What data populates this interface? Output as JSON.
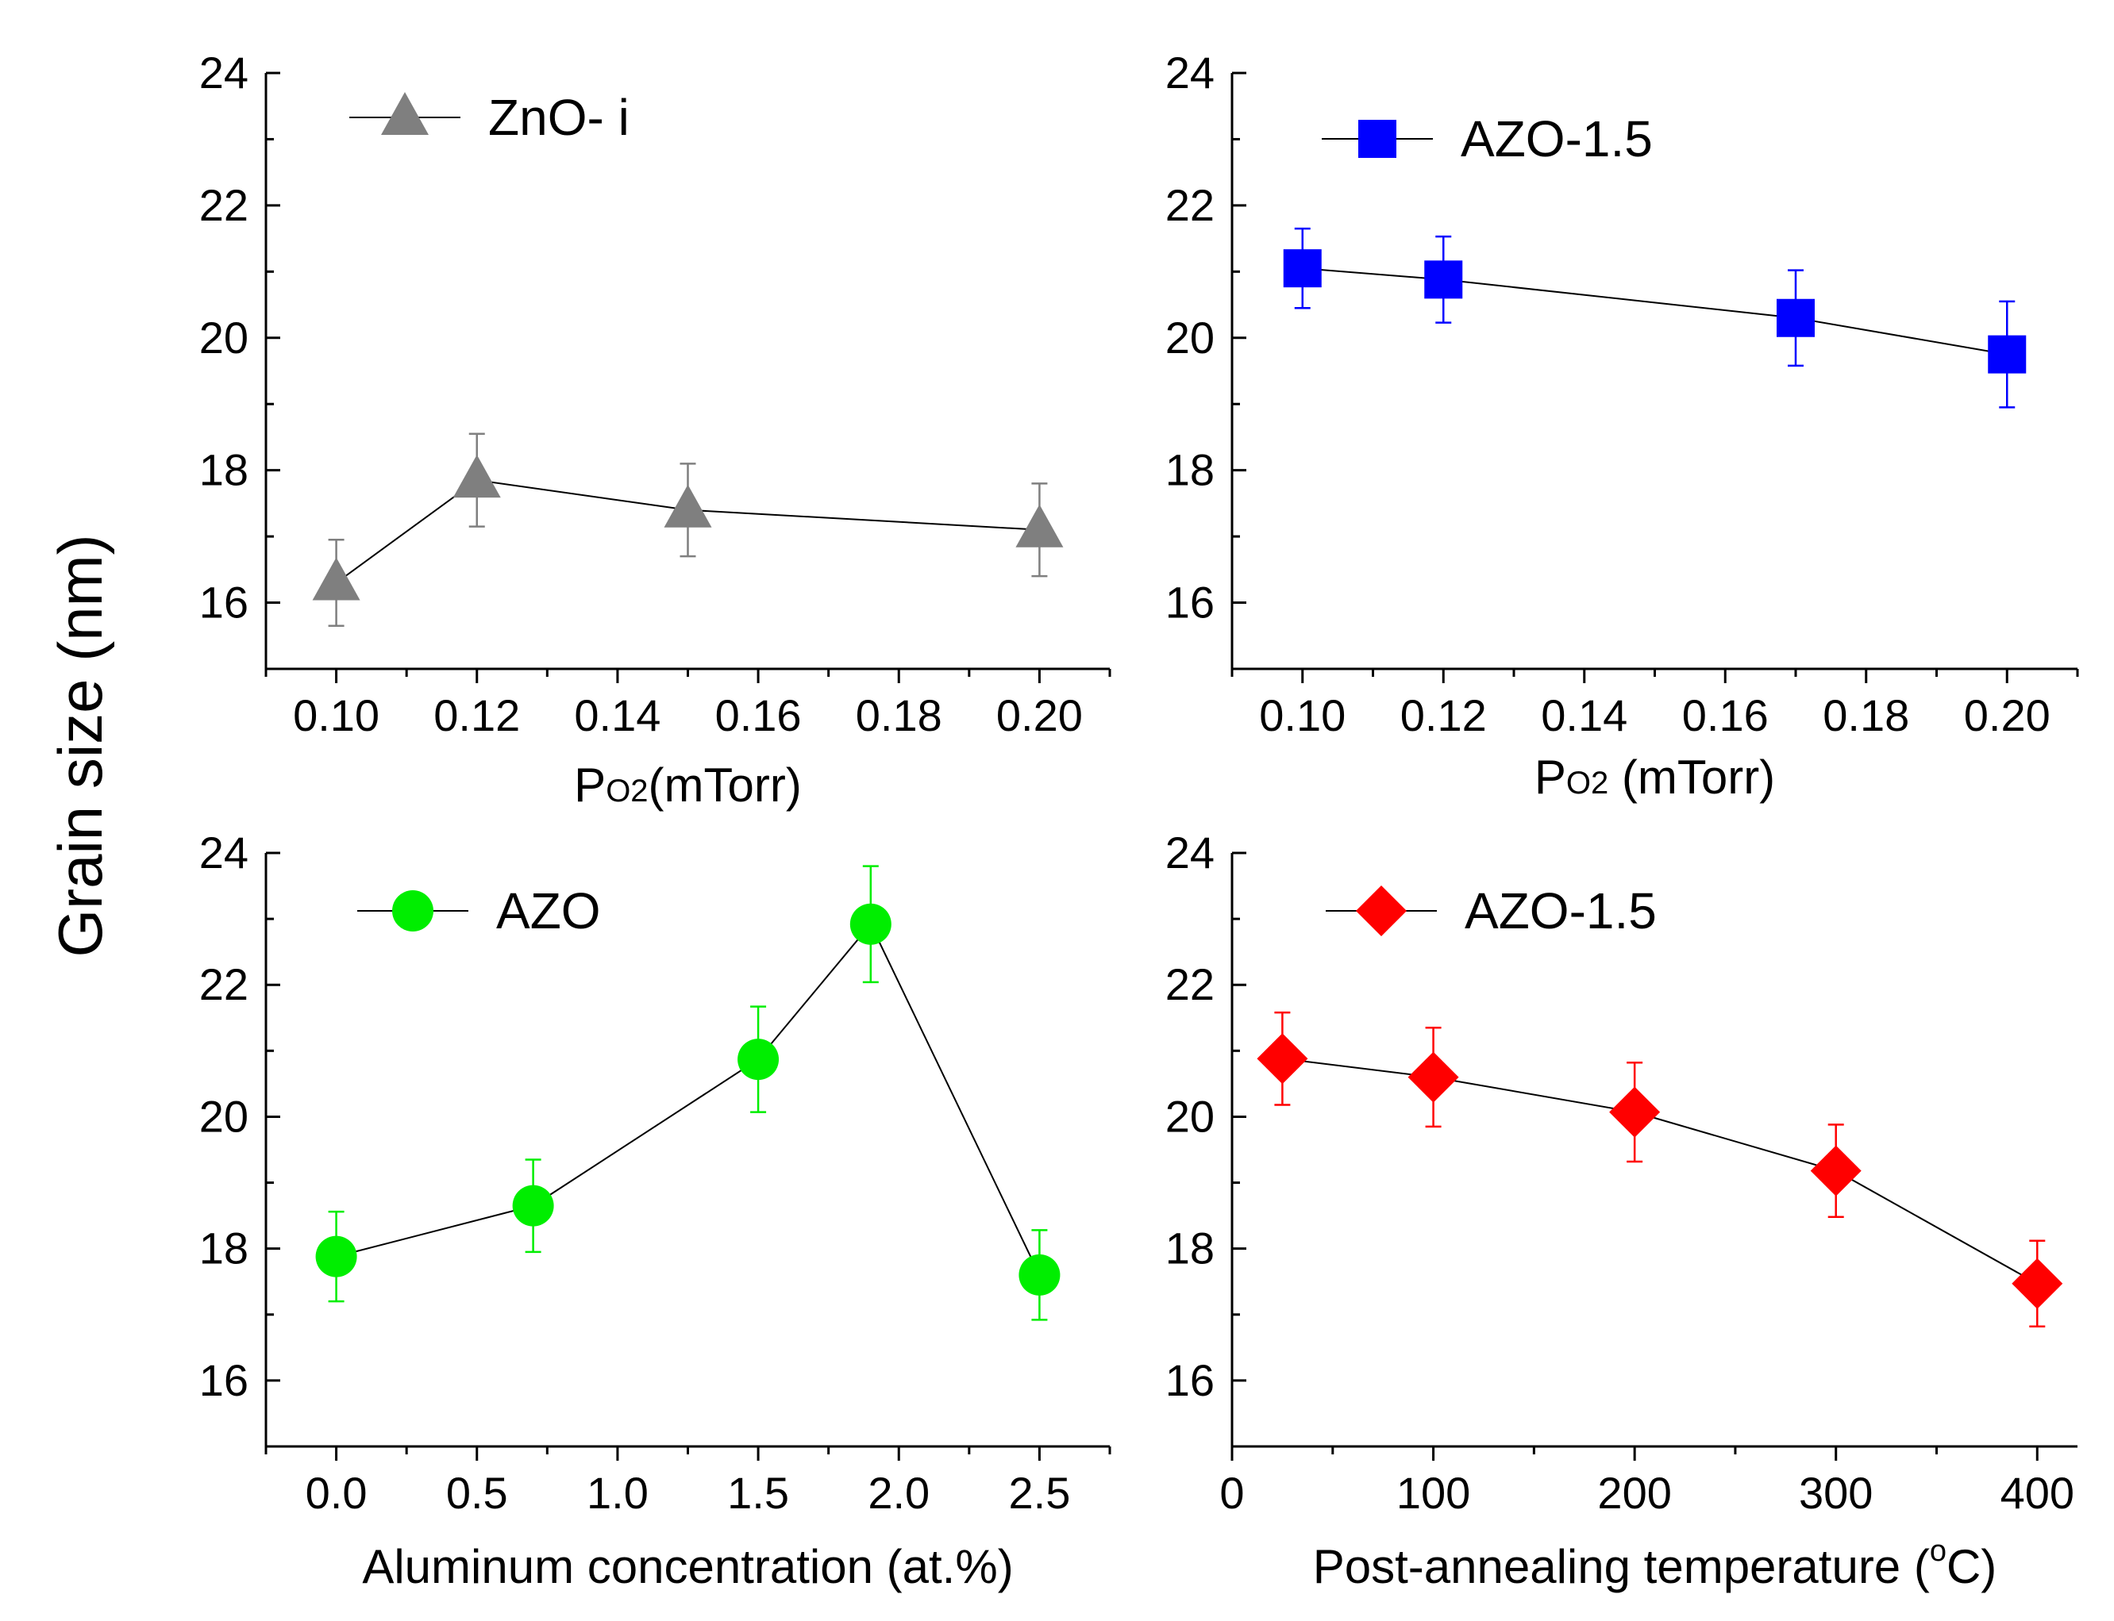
{
  "figure": {
    "ylabel": "Grain size (nm)"
  },
  "chart_data": [
    {
      "type": "scatter",
      "marker": "triangle",
      "color": "#7f7f7f",
      "line_color": "#000000",
      "legend": "ZnO- i",
      "xlabel_main": "P",
      "xlabel_sub": "O2",
      "xlabel_rest": "(mTorr)",
      "xlim": [
        0.09,
        0.21
      ],
      "ylim": [
        15,
        24
      ],
      "xticks": [
        0.1,
        0.12,
        0.14,
        0.16,
        0.18,
        0.2
      ],
      "xtick_labels": [
        "0.10",
        "0.12",
        "0.14",
        "0.16",
        "0.18",
        "0.20"
      ],
      "yticks": [
        16,
        18,
        20,
        22,
        24
      ],
      "ytick_labels": [
        "16",
        "18",
        "20",
        "22",
        "24"
      ],
      "x": [
        0.1,
        0.12,
        0.15,
        0.2
      ],
      "y": [
        16.3,
        17.85,
        17.4,
        17.1
      ],
      "err": [
        0.65,
        0.7,
        0.7,
        0.7
      ]
    },
    {
      "type": "scatter",
      "marker": "square",
      "color": "#0000ff",
      "line_color": "#000000",
      "legend": "AZO-1.5",
      "xlabel_main": "P",
      "xlabel_sub": "O2",
      "xlabel_rest": " (mTorr)",
      "xlim": [
        0.09,
        0.21
      ],
      "ylim": [
        15,
        24
      ],
      "xticks": [
        0.1,
        0.12,
        0.14,
        0.16,
        0.18,
        0.2
      ],
      "xtick_labels": [
        "0.10",
        "0.12",
        "0.14",
        "0.16",
        "0.18",
        "0.20"
      ],
      "yticks": [
        16,
        18,
        20,
        22,
        24
      ],
      "ytick_labels": [
        "16",
        "18",
        "20",
        "22",
        "24"
      ],
      "x": [
        0.1,
        0.12,
        0.17,
        0.2
      ],
      "y": [
        21.05,
        20.88,
        20.3,
        19.75
      ],
      "err": [
        0.6,
        0.65,
        0.72,
        0.8
      ]
    },
    {
      "type": "scatter",
      "marker": "circle",
      "color": "#00ee00",
      "line_color": "#000000",
      "legend": "AZO",
      "xlabel": "Aluminum concentration (at.%)",
      "xlim": [
        -0.25,
        2.75
      ],
      "ylim": [
        15,
        24
      ],
      "xticks": [
        0.0,
        0.5,
        1.0,
        1.5,
        2.0,
        2.5
      ],
      "xtick_labels": [
        "0.0",
        "0.5",
        "1.0",
        "1.5",
        "2.0",
        "2.5"
      ],
      "yticks": [
        16,
        18,
        20,
        22,
        24
      ],
      "ytick_labels": [
        "16",
        "18",
        "20",
        "22",
        "24"
      ],
      "x": [
        0.0,
        0.7,
        1.5,
        1.9,
        2.5
      ],
      "y": [
        17.88,
        18.65,
        20.87,
        22.92,
        17.6
      ],
      "err": [
        0.68,
        0.7,
        0.8,
        0.88,
        0.68
      ]
    },
    {
      "type": "scatter",
      "marker": "diamond",
      "color": "#ff0000",
      "line_color": "#000000",
      "legend": "AZO-1.5",
      "xlabel_main": "Post-annealing temperature (",
      "xlabel_sup": "o",
      "xlabel_rest": "C)",
      "xlim": [
        0,
        420
      ],
      "ylim": [
        15,
        24
      ],
      "xticks": [
        0,
        100,
        200,
        300,
        400
      ],
      "xtick_labels": [
        "0",
        "100",
        "200",
        "300",
        "400"
      ],
      "yticks": [
        16,
        18,
        20,
        22,
        24
      ],
      "ytick_labels": [
        "16",
        "18",
        "20",
        "22",
        "24"
      ],
      "x": [
        25,
        100,
        200,
        300,
        400
      ],
      "y": [
        20.88,
        20.6,
        20.07,
        19.18,
        17.47
      ],
      "err": [
        0.7,
        0.75,
        0.75,
        0.7,
        0.65
      ]
    }
  ]
}
